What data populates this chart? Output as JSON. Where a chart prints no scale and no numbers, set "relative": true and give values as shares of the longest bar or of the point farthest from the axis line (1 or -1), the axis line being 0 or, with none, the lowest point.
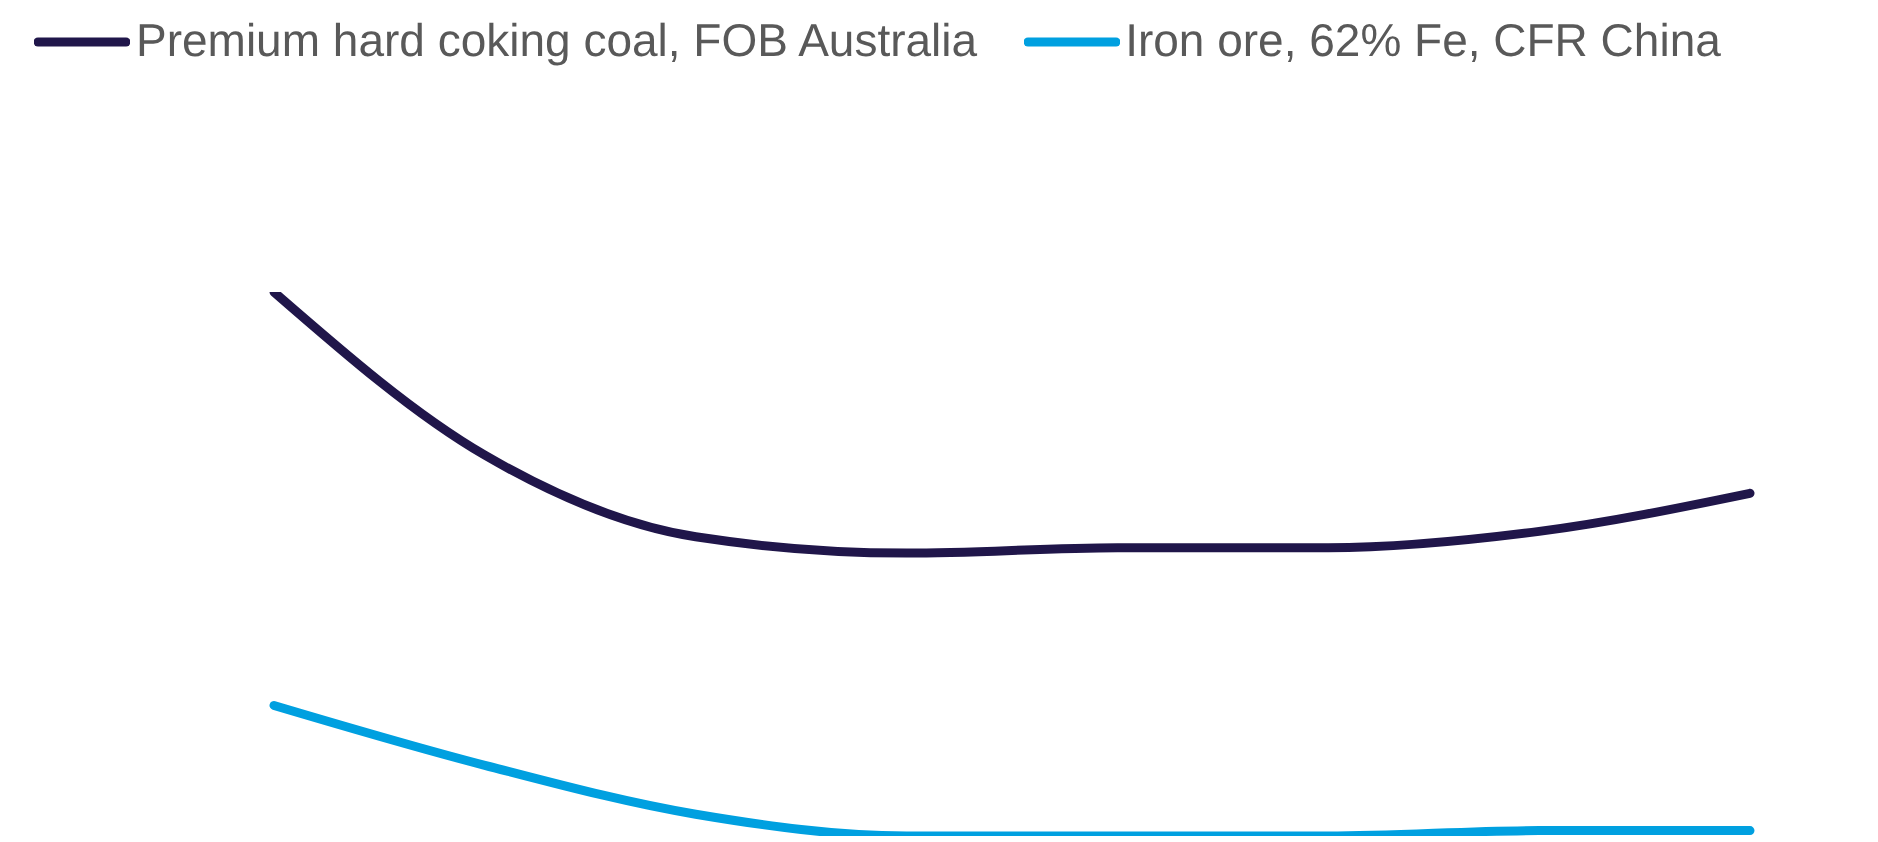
{
  "chart_data": {
    "type": "line",
    "relative": true,
    "tick_labels": false,
    "legend": "top left",
    "categories": [
      null,
      null,
      null,
      null,
      null,
      null,
      null,
      null
    ],
    "series": [
      {
        "name": "Premium hard coking coal, FOB Australia",
        "color": "#20164a",
        "values": [
          1,
          0.7,
          0.55,
          0.52,
          0.53,
          0.53,
          0.56,
          0.63
        ]
      },
      {
        "name": "Iron ore, 62% Fe, CFR China",
        "color": "#00a0e0",
        "values": [
          0.24,
          0.13,
          0.04,
          0,
          0,
          0,
          0.01,
          0.01
        ]
      }
    ]
  }
}
